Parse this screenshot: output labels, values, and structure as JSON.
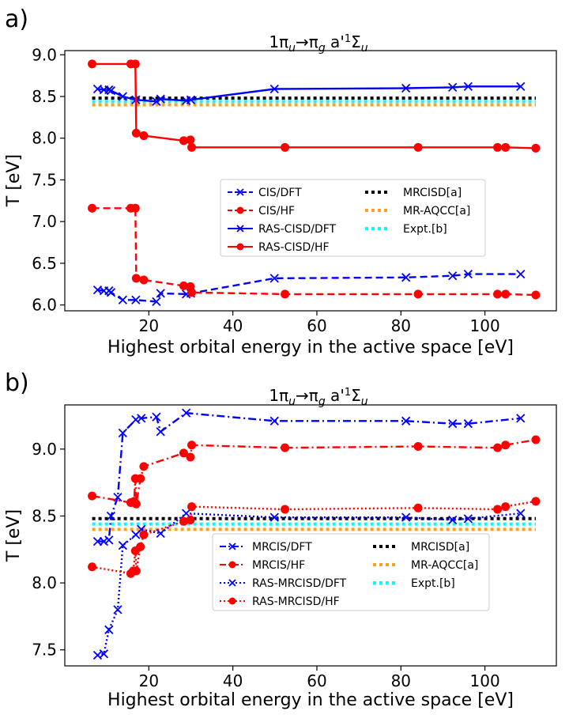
{
  "chart_data": [
    {
      "panel_label": "a)",
      "type": "line",
      "title_main": "1π",
      "title_sub1": "u",
      "title_arrow": "→π",
      "title_sub2": "g",
      "title_rest": " a'",
      "title_sup": "1",
      "title_sigma": "Σ",
      "title_sub3": "u",
      "xlabel": "Highest orbital energy in the active space [eV]",
      "ylabel": "T [eV]",
      "xlim": [
        0,
        117
      ],
      "ylim": [
        5.93,
        9.05
      ],
      "xticks": [
        20,
        40,
        60,
        80,
        100
      ],
      "yticks": [
        6.0,
        6.5,
        7.0,
        7.5,
        8.0,
        8.5,
        9.0
      ],
      "ytick_labels": [
        "6.0",
        "6.5",
        "7.0",
        "7.5",
        "8.0",
        "8.5",
        "9.0"
      ],
      "series": [
        {
          "name": "CIS/DFT",
          "color": "#0000ff",
          "dash": "dashed",
          "marker": "x",
          "x": [
            7.8,
            9.3,
            10.5,
            11.0,
            13.8,
            16.9,
            21.8,
            22.8,
            28.9,
            30.0,
            49.9,
            81.2,
            92.3,
            96.0,
            108.5
          ],
          "y": [
            6.18,
            6.17,
            6.17,
            6.15,
            6.06,
            6.06,
            6.04,
            6.14,
            6.13,
            6.14,
            6.32,
            6.33,
            6.35,
            6.37,
            6.37
          ]
        },
        {
          "name": "CIS/HF",
          "color": "#ff0000",
          "dash": "dashed",
          "marker": "o",
          "x": [
            6.5,
            15.7,
            16.8,
            17.0,
            18.8,
            28.3,
            29.9,
            30.2,
            52.4,
            84.1,
            103.0,
            104.9,
            112.1
          ],
          "y": [
            7.16,
            7.16,
            7.16,
            6.32,
            6.3,
            6.23,
            6.22,
            6.15,
            6.13,
            6.13,
            6.13,
            6.13,
            6.12
          ]
        },
        {
          "name": "RAS-CISD/DFT",
          "color": "#0000ff",
          "dash": "solid",
          "marker": "x",
          "x": [
            7.8,
            9.3,
            10.5,
            11.0,
            13.8,
            16.9,
            21.8,
            22.8,
            28.9,
            30.0,
            49.9,
            81.2,
            92.3,
            96.0,
            108.5
          ],
          "y": [
            8.59,
            8.58,
            8.58,
            8.57,
            8.5,
            8.46,
            8.44,
            8.47,
            8.45,
            8.46,
            8.59,
            8.6,
            8.61,
            8.62,
            8.62
          ]
        },
        {
          "name": "RAS-CISD/HF",
          "color": "#ff0000",
          "dash": "solid",
          "marker": "o",
          "x": [
            6.5,
            15.7,
            16.8,
            17.0,
            18.8,
            28.3,
            29.9,
            30.2,
            52.4,
            84.1,
            103.0,
            104.9,
            112.1
          ],
          "y": [
            8.89,
            8.89,
            8.89,
            8.06,
            8.03,
            7.97,
            7.98,
            7.89,
            7.89,
            7.89,
            7.89,
            7.89,
            7.88
          ]
        },
        {
          "name": "MRCISD[a]",
          "color": "#000000",
          "dash": "dotted",
          "marker": "none",
          "x": [
            6.5,
            112.1
          ],
          "y": [
            8.48,
            8.48
          ]
        },
        {
          "name": "MR-AQCC[a]",
          "color": "#ff9f1c",
          "dash": "dotted",
          "marker": "none",
          "x": [
            6.5,
            112.1
          ],
          "y": [
            8.4,
            8.4
          ]
        },
        {
          "name": "Expt.[b]",
          "color": "#00ffff",
          "dash": "dotted",
          "marker": "none",
          "x": [
            6.5,
            112.1
          ],
          "y": [
            8.44,
            8.44
          ]
        }
      ],
      "legend": {
        "placement": "center",
        "columns": 2
      }
    },
    {
      "panel_label": "b)",
      "type": "line",
      "title_main": "1π",
      "title_sub1": "u",
      "title_arrow": "→π",
      "title_sub2": "g",
      "title_rest": " a'",
      "title_sup": "1",
      "title_sigma": "Σ",
      "title_sub3": "u",
      "xlabel": "Highest orbital energy in the active space [eV]",
      "ylabel": "T [eV]",
      "xlim": [
        0,
        117
      ],
      "ylim": [
        7.38,
        9.33
      ],
      "xticks": [
        20,
        40,
        60,
        80,
        100
      ],
      "yticks": [
        7.5,
        8.0,
        8.5,
        9.0
      ],
      "ytick_labels": [
        "7.5",
        "8.0",
        "8.5",
        "9.0"
      ],
      "series": [
        {
          "name": "MRCIS/DFT",
          "color": "#0000ff",
          "dash": "dashdot",
          "marker": "x",
          "x": [
            7.8,
            9.3,
            10.5,
            11.0,
            12.6,
            13.8,
            16.9,
            18.2,
            21.8,
            22.8,
            28.9,
            49.9,
            81.2,
            92.3,
            96.0,
            108.5
          ],
          "y": [
            8.31,
            8.31,
            8.32,
            8.5,
            8.64,
            9.12,
            9.22,
            9.23,
            9.24,
            9.13,
            9.27,
            9.21,
            9.21,
            9.19,
            9.19,
            9.23
          ]
        },
        {
          "name": "MRCIS/HF",
          "color": "#ff0000",
          "dash": "dashdot",
          "marker": "o",
          "x": [
            6.5,
            15.7,
            16.5,
            16.8,
            17.0,
            18.0,
            18.8,
            28.3,
            29.9,
            30.2,
            52.4,
            84.1,
            103.0,
            104.9,
            112.1
          ],
          "y": [
            8.65,
            8.6,
            8.61,
            8.78,
            8.59,
            8.78,
            8.87,
            8.97,
            8.94,
            9.03,
            9.01,
            9.02,
            9.01,
            9.03,
            9.07
          ]
        },
        {
          "name": "RAS-MRCISD/DFT",
          "color": "#0000ff",
          "dash": "dotted",
          "marker": "x",
          "x": [
            7.8,
            9.3,
            10.5,
            12.6,
            13.8,
            16.9,
            18.2,
            22.8,
            28.9,
            49.9,
            81.2,
            92.3,
            96.0,
            108.5
          ],
          "y": [
            7.46,
            7.47,
            7.65,
            7.8,
            8.28,
            8.36,
            8.4,
            8.37,
            8.52,
            8.49,
            8.49,
            8.47,
            8.48,
            8.52
          ]
        },
        {
          "name": "RAS-MRCISD/HF",
          "color": "#ff0000",
          "dash": "dotted",
          "marker": "o",
          "x": [
            6.5,
            15.7,
            16.3,
            16.8,
            17.0,
            18.0,
            18.8,
            28.3,
            29.9,
            30.2,
            52.4,
            84.1,
            103.0,
            104.9,
            112.1
          ],
          "y": [
            8.12,
            8.07,
            8.09,
            8.24,
            8.09,
            8.27,
            8.36,
            8.46,
            8.47,
            8.57,
            8.55,
            8.56,
            8.55,
            8.57,
            8.61
          ]
        },
        {
          "name": "MRCISD[a]",
          "color": "#000000",
          "dash": "dotted",
          "marker": "none",
          "x": [
            6.5,
            112.1
          ],
          "y": [
            8.48,
            8.48
          ]
        },
        {
          "name": "MR-AQCC[a]",
          "color": "#ff9f1c",
          "dash": "dotted",
          "marker": "none",
          "x": [
            6.5,
            112.1
          ],
          "y": [
            8.4,
            8.4
          ]
        },
        {
          "name": "Expt.[b]",
          "color": "#00ffff",
          "dash": "dotted",
          "marker": "none",
          "x": [
            6.5,
            112.1
          ],
          "y": [
            8.44,
            8.44
          ]
        }
      ],
      "legend": {
        "placement": "lower-center",
        "columns": 2
      }
    }
  ]
}
